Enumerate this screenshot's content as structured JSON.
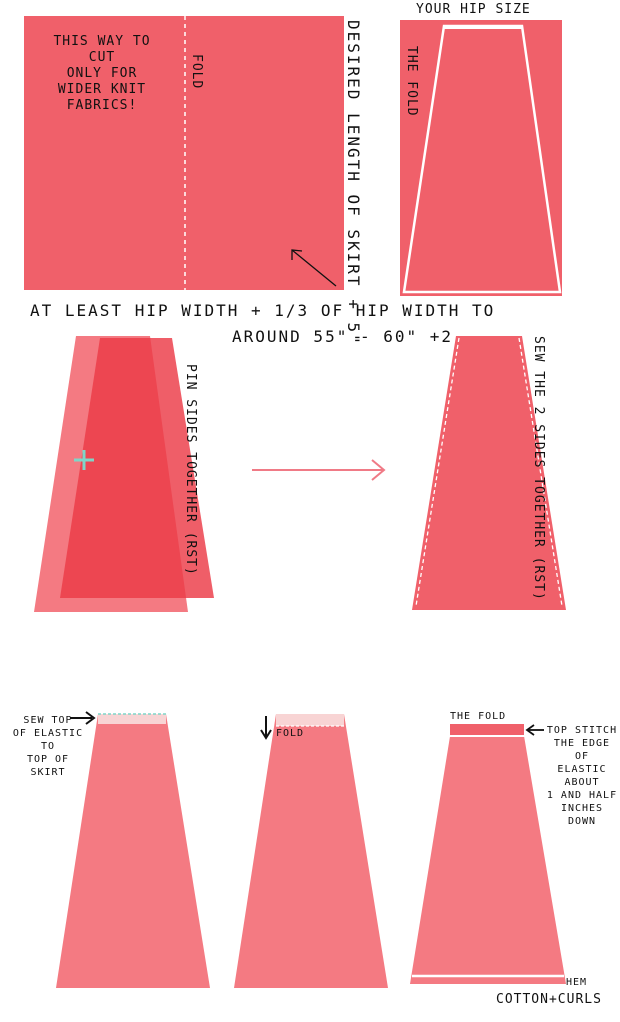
{
  "colors": {
    "fabric": "#f0606a",
    "fabric_light": "#f47a82",
    "fabric_dark": "#ec3b47",
    "arrow": "#f07a86",
    "pin": "#7fd6c8",
    "elastic": "#f8d4d4",
    "stitch": "#ffffff"
  },
  "step1": {
    "cut_note": "THIS WAY TO CUT\nONLY FOR\nWIDER KNIT FABRICS!",
    "fold_label": "FOLD",
    "length_label": "DESIRED LENGTH OF SKIRT + 5\"",
    "width_label_line1": "AT LEAST HIP WIDTH + 1/3 OF HIP WIDTH TO",
    "width_label_line2": "AROUND 55\" - 60\" +2"
  },
  "step2": {
    "hip_label": "YOUR HIP SIZE",
    "fold_label": "THE FOLD"
  },
  "step3": {
    "pin_label": "PIN SIDES TOGETHER (RST)",
    "sew_label": "SEW THE 2 SIDES TOGETHER (RST)"
  },
  "step4": {
    "sew_top_label": "SEW TOP\nOF ELASTIC TO\nTOP OF SKIRT",
    "fold_label": "FOLD",
    "the_fold_label": "THE FOLD",
    "topstitch_label": "TOP STITCH\nTHE EDGE OF\nELASTIC ABOUT\n1 AND HALF\nINCHES DOWN",
    "hem_label": "HEM"
  },
  "credit": "COTTON+CURLS"
}
